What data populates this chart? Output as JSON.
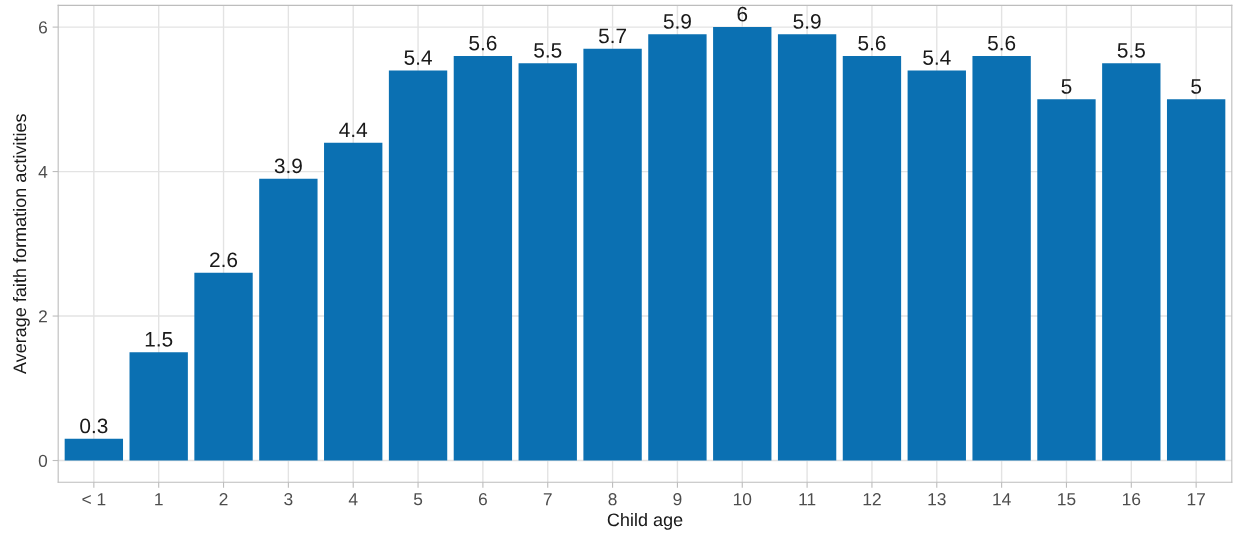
{
  "chart_data": {
    "type": "bar",
    "xlabel": "Child age",
    "ylabel": "Average faith formation activities",
    "categories": [
      "< 1",
      "1",
      "2",
      "3",
      "4",
      "5",
      "6",
      "7",
      "8",
      "9",
      "10",
      "11",
      "12",
      "13",
      "14",
      "15",
      "16",
      "17"
    ],
    "values": [
      0.3,
      1.5,
      2.6,
      3.9,
      4.4,
      5.4,
      5.6,
      5.5,
      5.7,
      5.9,
      6,
      5.9,
      5.6,
      5.4,
      5.6,
      5,
      5.5,
      5
    ],
    "color": "#0b70b2",
    "ylim": [
      -0.3,
      6.3
    ],
    "yticks": [
      0,
      2,
      4,
      6
    ],
    "grid": true,
    "data_labels": true
  }
}
